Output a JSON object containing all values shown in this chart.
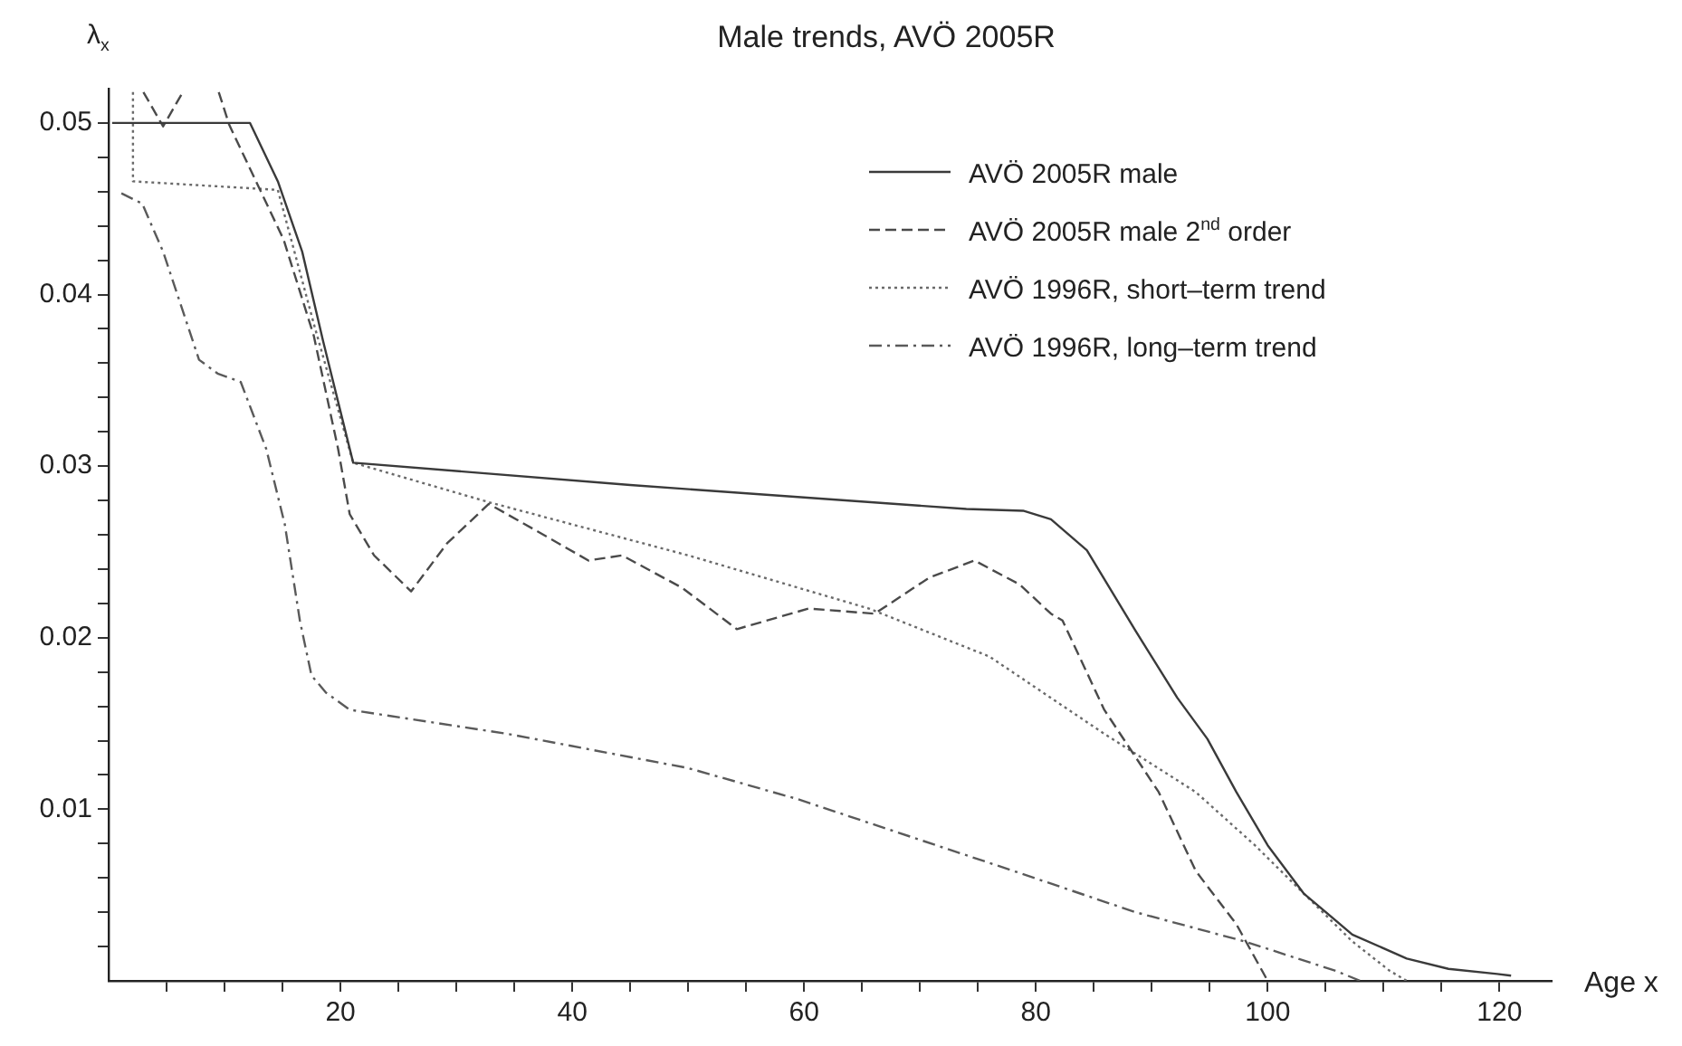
{
  "chart_data": {
    "type": "line",
    "title": "Male trends, AVÖ 2005R",
    "xlabel": "Age x",
    "ylabel": "λ$_{x}$",
    "xlim": [
      0,
      124.5
    ],
    "ylim": [
      0,
      0.052
    ],
    "xticks": [
      {
        "value": 5,
        "label": null
      },
      {
        "value": 10,
        "label": null
      },
      {
        "value": 15,
        "label": null
      },
      20,
      {
        "value": 25,
        "label": null
      },
      {
        "value": 30,
        "label": null
      },
      {
        "value": 35,
        "label": null
      },
      40,
      {
        "value": 45,
        "label": null
      },
      {
        "value": 50,
        "label": null
      },
      {
        "value": 55,
        "label": null
      },
      60,
      {
        "value": 65,
        "label": null
      },
      {
        "value": 70,
        "label": null
      },
      {
        "value": 75,
        "label": null
      },
      80,
      {
        "value": 85,
        "label": null
      },
      {
        "value": 90,
        "label": null
      },
      {
        "value": 95,
        "label": null
      },
      100,
      {
        "value": 105,
        "label": null
      },
      {
        "value": 110,
        "label": null
      },
      {
        "value": 115,
        "label": null
      },
      120
    ],
    "yticks": [
      {
        "value": 0.002,
        "label": null
      },
      {
        "value": 0.004,
        "label": null
      },
      {
        "value": 0.006,
        "label": null
      },
      {
        "value": 0.008,
        "label": null
      },
      0.01,
      {
        "value": 0.012,
        "label": null
      },
      {
        "value": 0.014,
        "label": null
      },
      {
        "value": 0.016,
        "label": null
      },
      {
        "value": 0.018,
        "label": null
      },
      0.02,
      {
        "value": 0.022,
        "label": null
      },
      {
        "value": 0.024,
        "label": null
      },
      {
        "value": 0.026,
        "label": null
      },
      {
        "value": 0.028,
        "label": null
      },
      0.03,
      {
        "value": 0.032,
        "label": null
      },
      {
        "value": 0.034,
        "label": null
      },
      {
        "value": 0.036,
        "label": null
      },
      {
        "value": 0.038,
        "label": null
      },
      0.04,
      {
        "value": 0.042,
        "label": null
      },
      {
        "value": 0.044,
        "label": null
      },
      {
        "value": 0.046,
        "label": null
      },
      {
        "value": 0.048,
        "label": null
      },
      0.05
    ],
    "grid": false,
    "legend": "top right",
    "marker": "none",
    "series": [
      {
        "name": "AVÖ 2005R male",
        "color": "#3a3a3a",
        "line_style": "solid",
        "x": [
          0.3,
          12.2,
          14.6,
          16.7,
          18.5,
          21.1,
          45,
          74,
          78.9,
          81.3,
          84.4,
          88.6,
          92.2,
          94.8,
          97.3,
          100,
          103.1,
          107.3,
          112,
          115.6,
          119.8,
          121
        ],
        "values": [
          0.05,
          0.05,
          0.0466,
          0.0425,
          0.0373,
          0.0302,
          0.0289,
          0.0275,
          0.0274,
          0.0269,
          0.0251,
          0.0204,
          0.0165,
          0.0141,
          0.011,
          0.0079,
          0.0051,
          0.0027,
          0.0013,
          0.0007,
          0.0004,
          0.0003
        ]
      },
      {
        "name": "AVÖ 2005R male 2$^{nd}$ order",
        "color": "#4a4a4a",
        "line_style": "dashed",
        "x": [
          3,
          4.7,
          6.4,
          8,
          9.5,
          10.4,
          15.1,
          17.7,
          19.8,
          20.8,
          22.9,
          26.1,
          29.2,
          32.8,
          37,
          41.4,
          44.3,
          49.5,
          54.2,
          60.4,
          66.1,
          70.8,
          74.7,
          78.6,
          81.3,
          82.3,
          85.9,
          90.6,
          93.8,
          97.3,
          100
        ],
        "values": [
          0.0518,
          0.0498,
          0.0518,
          null,
          0.0518,
          0.0499,
          0.0432,
          0.0376,
          0.031,
          0.0272,
          0.0248,
          0.0227,
          0.0255,
          0.0278,
          0.0262,
          0.0245,
          0.0248,
          0.0229,
          0.0205,
          0.0217,
          0.0214,
          0.0235,
          0.0245,
          0.0231,
          0.0214,
          0.021,
          0.0158,
          0.011,
          0.0064,
          0.0033,
          0
        ]
      },
      {
        "name": "AVÖ 1996R, short–term trend",
        "color": "#6a6a6a",
        "line_style": "dotted",
        "x": [
          2.1,
          2.1,
          14.6,
          17.7,
          21.1,
          32.8,
          50,
          65.6,
          76,
          85.9,
          93.8,
          98.9,
          103.1,
          107.3,
          110.5,
          112
        ],
        "values": [
          0.0518,
          0.0466,
          0.0461,
          0.0383,
          0.0302,
          0.0279,
          0.0248,
          0.0217,
          0.0189,
          0.0144,
          0.011,
          0.0079,
          0.0051,
          0.0023,
          0.0006,
          0
        ]
      },
      {
        "name": "AVÖ 1996R, long–term trend",
        "color": "#5a5a5a",
        "line_style": "dashdot",
        "x": [
          1.1,
          2.9,
          4.7,
          7.8,
          9.4,
          11.4,
          13.6,
          15.2,
          16.5,
          17.5,
          18.75,
          20.8,
          34.4,
          50,
          59.4,
          78.1,
          88.6,
          98,
          105.8,
          108
        ],
        "values": [
          0.0459,
          0.0453,
          0.0425,
          0.0362,
          0.0354,
          0.0349,
          0.031,
          0.0266,
          0.021,
          0.0178,
          0.0168,
          0.0158,
          0.0144,
          0.0124,
          0.0106,
          0.0064,
          0.004,
          0.0023,
          0.0006,
          0
        ]
      }
    ]
  }
}
